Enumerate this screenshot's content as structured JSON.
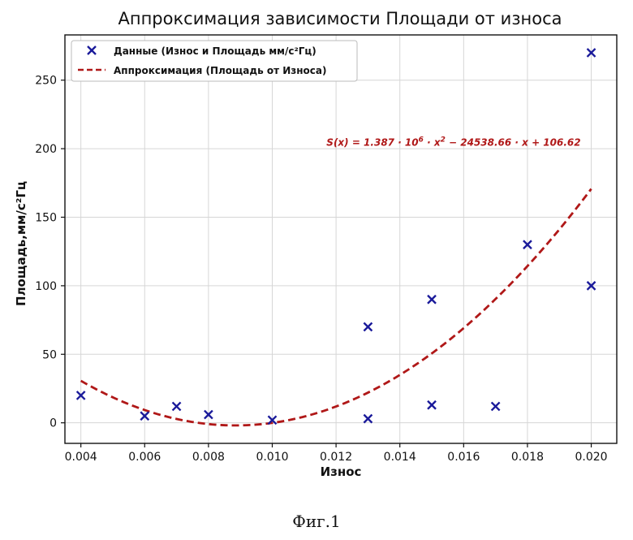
{
  "chart_data": {
    "type": "scatter",
    "title": "Аппроксимация зависимости Площади от износа",
    "xlabel": "Износ",
    "ylabel": "Площадь,мм/c²Гц",
    "xlim": [
      0.0035,
      0.0208
    ],
    "ylim": [
      -15,
      283
    ],
    "xticks": [
      0.004,
      0.006,
      0.008,
      0.01,
      0.012,
      0.014,
      0.016,
      0.018,
      0.02
    ],
    "xtick_labels": [
      "0.004",
      "0.006",
      "0.008",
      "0.010",
      "0.012",
      "0.014",
      "0.016",
      "0.018",
      "0.020"
    ],
    "yticks": [
      0,
      50,
      100,
      150,
      200,
      250
    ],
    "ytick_labels": [
      "0",
      "50",
      "100",
      "150",
      "200",
      "250"
    ],
    "grid": true,
    "legend_position": "top-left",
    "series": [
      {
        "name": "Данные (Износ и Площадь мм/c²Гц)",
        "kind": "scatter",
        "marker": "x",
        "color": "#1a1a9a",
        "points": [
          [
            0.004,
            20
          ],
          [
            0.006,
            5
          ],
          [
            0.007,
            12
          ],
          [
            0.008,
            6
          ],
          [
            0.01,
            2
          ],
          [
            0.013,
            70
          ],
          [
            0.013,
            3
          ],
          [
            0.015,
            90
          ],
          [
            0.015,
            13
          ],
          [
            0.017,
            12
          ],
          [
            0.018,
            130
          ],
          [
            0.02,
            100
          ],
          [
            0.02,
            270
          ]
        ]
      },
      {
        "name": "Аппроксимация (Площадь от Износа)",
        "kind": "line",
        "style": "dashed",
        "color": "#b01818",
        "x_range": [
          0.004,
          0.02
        ],
        "coefficients": {
          "a": 1387000,
          "b": -24538.66,
          "c": 106.62
        }
      }
    ],
    "annotation": {
      "lhs": "S(x) = 1.387 · 10",
      "exp1": "6",
      "mid": " · x",
      "exp2": "2",
      "rhs": " − 24538.66 · x + 106.62",
      "anchor_x": 0.0117,
      "anchor_y": 202
    }
  },
  "caption": "Фиг.1"
}
